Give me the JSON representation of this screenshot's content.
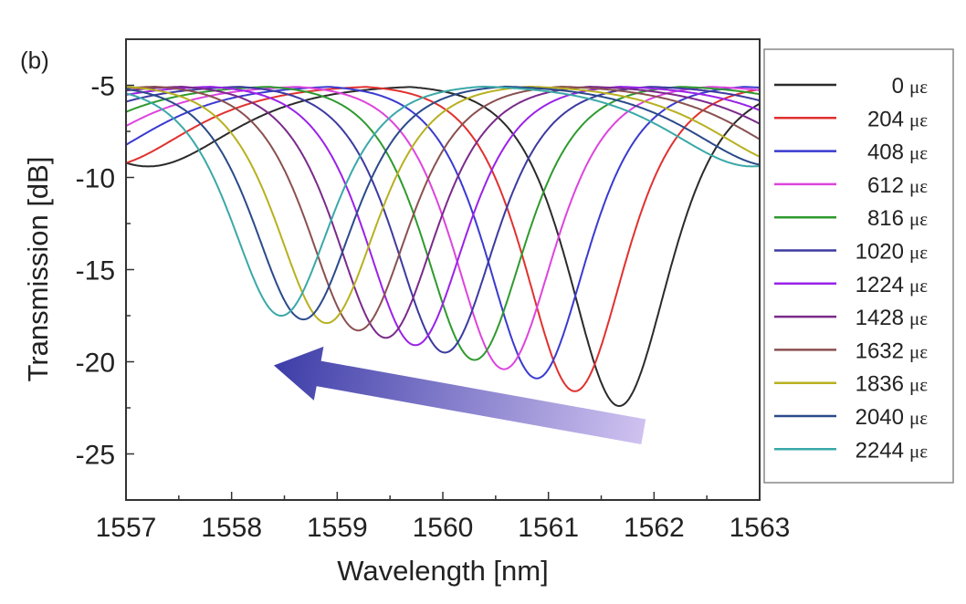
{
  "chart_data": {
    "type": "line",
    "panel_label": "(b)",
    "title": "",
    "xlabel": "Wavelength [nm]",
    "ylabel": "Transmission [dB]",
    "xlim": [
      1557,
      1563
    ],
    "ylim": [
      -27.5,
      -2.5
    ],
    "xticks": [
      1557,
      1558,
      1559,
      1560,
      1561,
      1562,
      1563
    ],
    "yticks": [
      -5,
      -10,
      -15,
      -20,
      -25
    ],
    "grid": false,
    "legend_position": "right-outside",
    "unit_symbol": "με",
    "baseline_db": -4.9,
    "free_spectral_range_nm": 4.46,
    "series": [
      {
        "name": "0",
        "label": "0",
        "color": "#2b2b2b",
        "dip_wavelength_nm": 1561.67,
        "dip_depth_db": -22.4
      },
      {
        "name": "204",
        "label": "204",
        "color": "#e0312f",
        "dip_wavelength_nm": 1561.25,
        "dip_depth_db": -21.6
      },
      {
        "name": "408",
        "label": "408",
        "color": "#3a3ad0",
        "dip_wavelength_nm": 1560.89,
        "dip_depth_db": -20.9
      },
      {
        "name": "612",
        "label": "612",
        "color": "#dd44dd",
        "dip_wavelength_nm": 1560.58,
        "dip_depth_db": -20.4
      },
      {
        "name": "816",
        "label": "816",
        "color": "#2e9a2e",
        "dip_wavelength_nm": 1560.3,
        "dip_depth_db": -19.9
      },
      {
        "name": "1020",
        "label": "1020",
        "color": "#3c3aa0",
        "dip_wavelength_nm": 1560.02,
        "dip_depth_db": -19.5
      },
      {
        "name": "1224",
        "label": "1224",
        "color": "#9a22e8",
        "dip_wavelength_nm": 1559.74,
        "dip_depth_db": -19.1
      },
      {
        "name": "1428",
        "label": "1428",
        "color": "#7a2a8a",
        "dip_wavelength_nm": 1559.46,
        "dip_depth_db": -18.7
      },
      {
        "name": "1632",
        "label": "1632",
        "color": "#8a5050",
        "dip_wavelength_nm": 1559.2,
        "dip_depth_db": -18.3
      },
      {
        "name": "1836",
        "label": "1836",
        "color": "#b8b020",
        "dip_wavelength_nm": 1558.9,
        "dip_depth_db": -17.9
      },
      {
        "name": "2040",
        "label": "2040",
        "color": "#2a4a8a",
        "dip_wavelength_nm": 1558.68,
        "dip_depth_db": -17.7
      },
      {
        "name": "2244",
        "label": "2244",
        "color": "#3aa8a8",
        "dip_wavelength_nm": 1558.47,
        "dip_depth_db": -17.5
      }
    ],
    "annotation": {
      "type": "arrow",
      "meaning": "dip shift direction with increasing strain",
      "from": [
        1561.9,
        -23.8
      ],
      "to": [
        1558.4,
        -20.2
      ],
      "color_start": "#3d3da8",
      "color_end": "#cfc2f0"
    }
  }
}
